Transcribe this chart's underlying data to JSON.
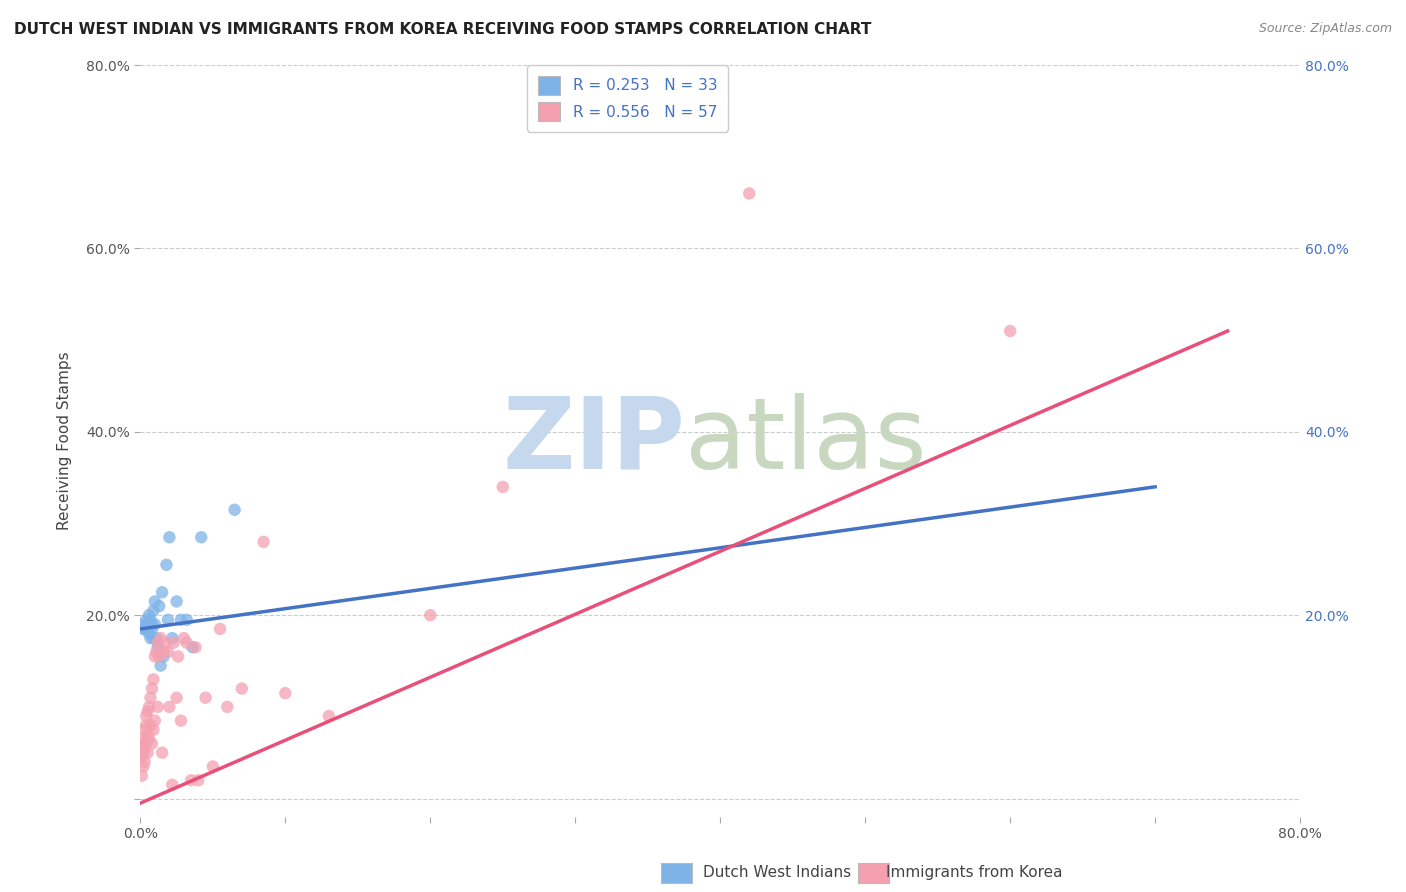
{
  "title": "DUTCH WEST INDIAN VS IMMIGRANTS FROM KOREA RECEIVING FOOD STAMPS CORRELATION CHART",
  "source": "Source: ZipAtlas.com",
  "ylabel": "Receiving Food Stamps",
  "xlim": [
    0,
    0.8
  ],
  "ylim": [
    -0.02,
    0.8
  ],
  "xticks": [
    0.0,
    0.1,
    0.2,
    0.3,
    0.4,
    0.5,
    0.6,
    0.7,
    0.8
  ],
  "yticks": [
    0.0,
    0.2,
    0.4,
    0.6,
    0.8
  ],
  "xticklabels": [
    "0.0%",
    "",
    "",
    "",
    "",
    "",
    "",
    "",
    "80.0%"
  ],
  "yticklabels": [
    "",
    "20.0%",
    "40.0%",
    "60.0%",
    "80.0%"
  ],
  "right_yticklabels": [
    "20.0%",
    "40.0%",
    "60.0%",
    "80.0%"
  ],
  "right_yticks": [
    0.2,
    0.4,
    0.6,
    0.8
  ],
  "legend_r1": "R = 0.253",
  "legend_n1": "N = 33",
  "legend_r2": "R = 0.556",
  "legend_n2": "N = 57",
  "color_blue": "#7EB3E8",
  "color_pink": "#F4A0B0",
  "color_blue_text": "#4472C4",
  "color_pink_line": "#E8507A",
  "color_blue_line": "#4472C4",
  "background": "#FFFFFF",
  "grid_color": "#CCCCCC",
  "dutch_x": [
    0.001,
    0.002,
    0.003,
    0.004,
    0.004,
    0.005,
    0.005,
    0.006,
    0.006,
    0.007,
    0.007,
    0.008,
    0.008,
    0.009,
    0.009,
    0.01,
    0.01,
    0.011,
    0.012,
    0.013,
    0.014,
    0.015,
    0.016,
    0.018,
    0.019,
    0.02,
    0.022,
    0.025,
    0.028,
    0.032,
    0.036,
    0.042,
    0.065
  ],
  "dutch_y": [
    0.19,
    0.185,
    0.185,
    0.185,
    0.195,
    0.19,
    0.185,
    0.2,
    0.18,
    0.195,
    0.175,
    0.19,
    0.185,
    0.205,
    0.175,
    0.215,
    0.19,
    0.175,
    0.165,
    0.21,
    0.145,
    0.225,
    0.155,
    0.255,
    0.195,
    0.285,
    0.175,
    0.215,
    0.195,
    0.195,
    0.165,
    0.285,
    0.315
  ],
  "korea_x": [
    0.001,
    0.001,
    0.001,
    0.002,
    0.002,
    0.002,
    0.003,
    0.003,
    0.003,
    0.004,
    0.004,
    0.004,
    0.005,
    0.005,
    0.005,
    0.006,
    0.006,
    0.007,
    0.007,
    0.008,
    0.008,
    0.009,
    0.009,
    0.01,
    0.01,
    0.011,
    0.012,
    0.012,
    0.013,
    0.014,
    0.015,
    0.016,
    0.018,
    0.019,
    0.02,
    0.022,
    0.023,
    0.025,
    0.026,
    0.028,
    0.03,
    0.032,
    0.035,
    0.038,
    0.04,
    0.045,
    0.05,
    0.055,
    0.06,
    0.07,
    0.085,
    0.1,
    0.13,
    0.2,
    0.25,
    0.42,
    0.6
  ],
  "korea_y": [
    0.025,
    0.045,
    0.06,
    0.035,
    0.05,
    0.065,
    0.04,
    0.055,
    0.075,
    0.06,
    0.08,
    0.09,
    0.05,
    0.07,
    0.095,
    0.065,
    0.1,
    0.08,
    0.11,
    0.06,
    0.12,
    0.075,
    0.13,
    0.085,
    0.155,
    0.16,
    0.1,
    0.17,
    0.155,
    0.175,
    0.05,
    0.16,
    0.17,
    0.16,
    0.1,
    0.015,
    0.17,
    0.11,
    0.155,
    0.085,
    0.175,
    0.17,
    0.02,
    0.165,
    0.02,
    0.11,
    0.035,
    0.185,
    0.1,
    0.12,
    0.28,
    0.115,
    0.09,
    0.2,
    0.34,
    0.66,
    0.51
  ],
  "blue_line_x0": 0.0,
  "blue_line_y0": 0.185,
  "blue_line_x1": 0.7,
  "blue_line_y1": 0.34,
  "pink_line_x0": 0.0,
  "pink_line_y0": -0.005,
  "pink_line_x1": 0.75,
  "pink_line_y1": 0.51
}
